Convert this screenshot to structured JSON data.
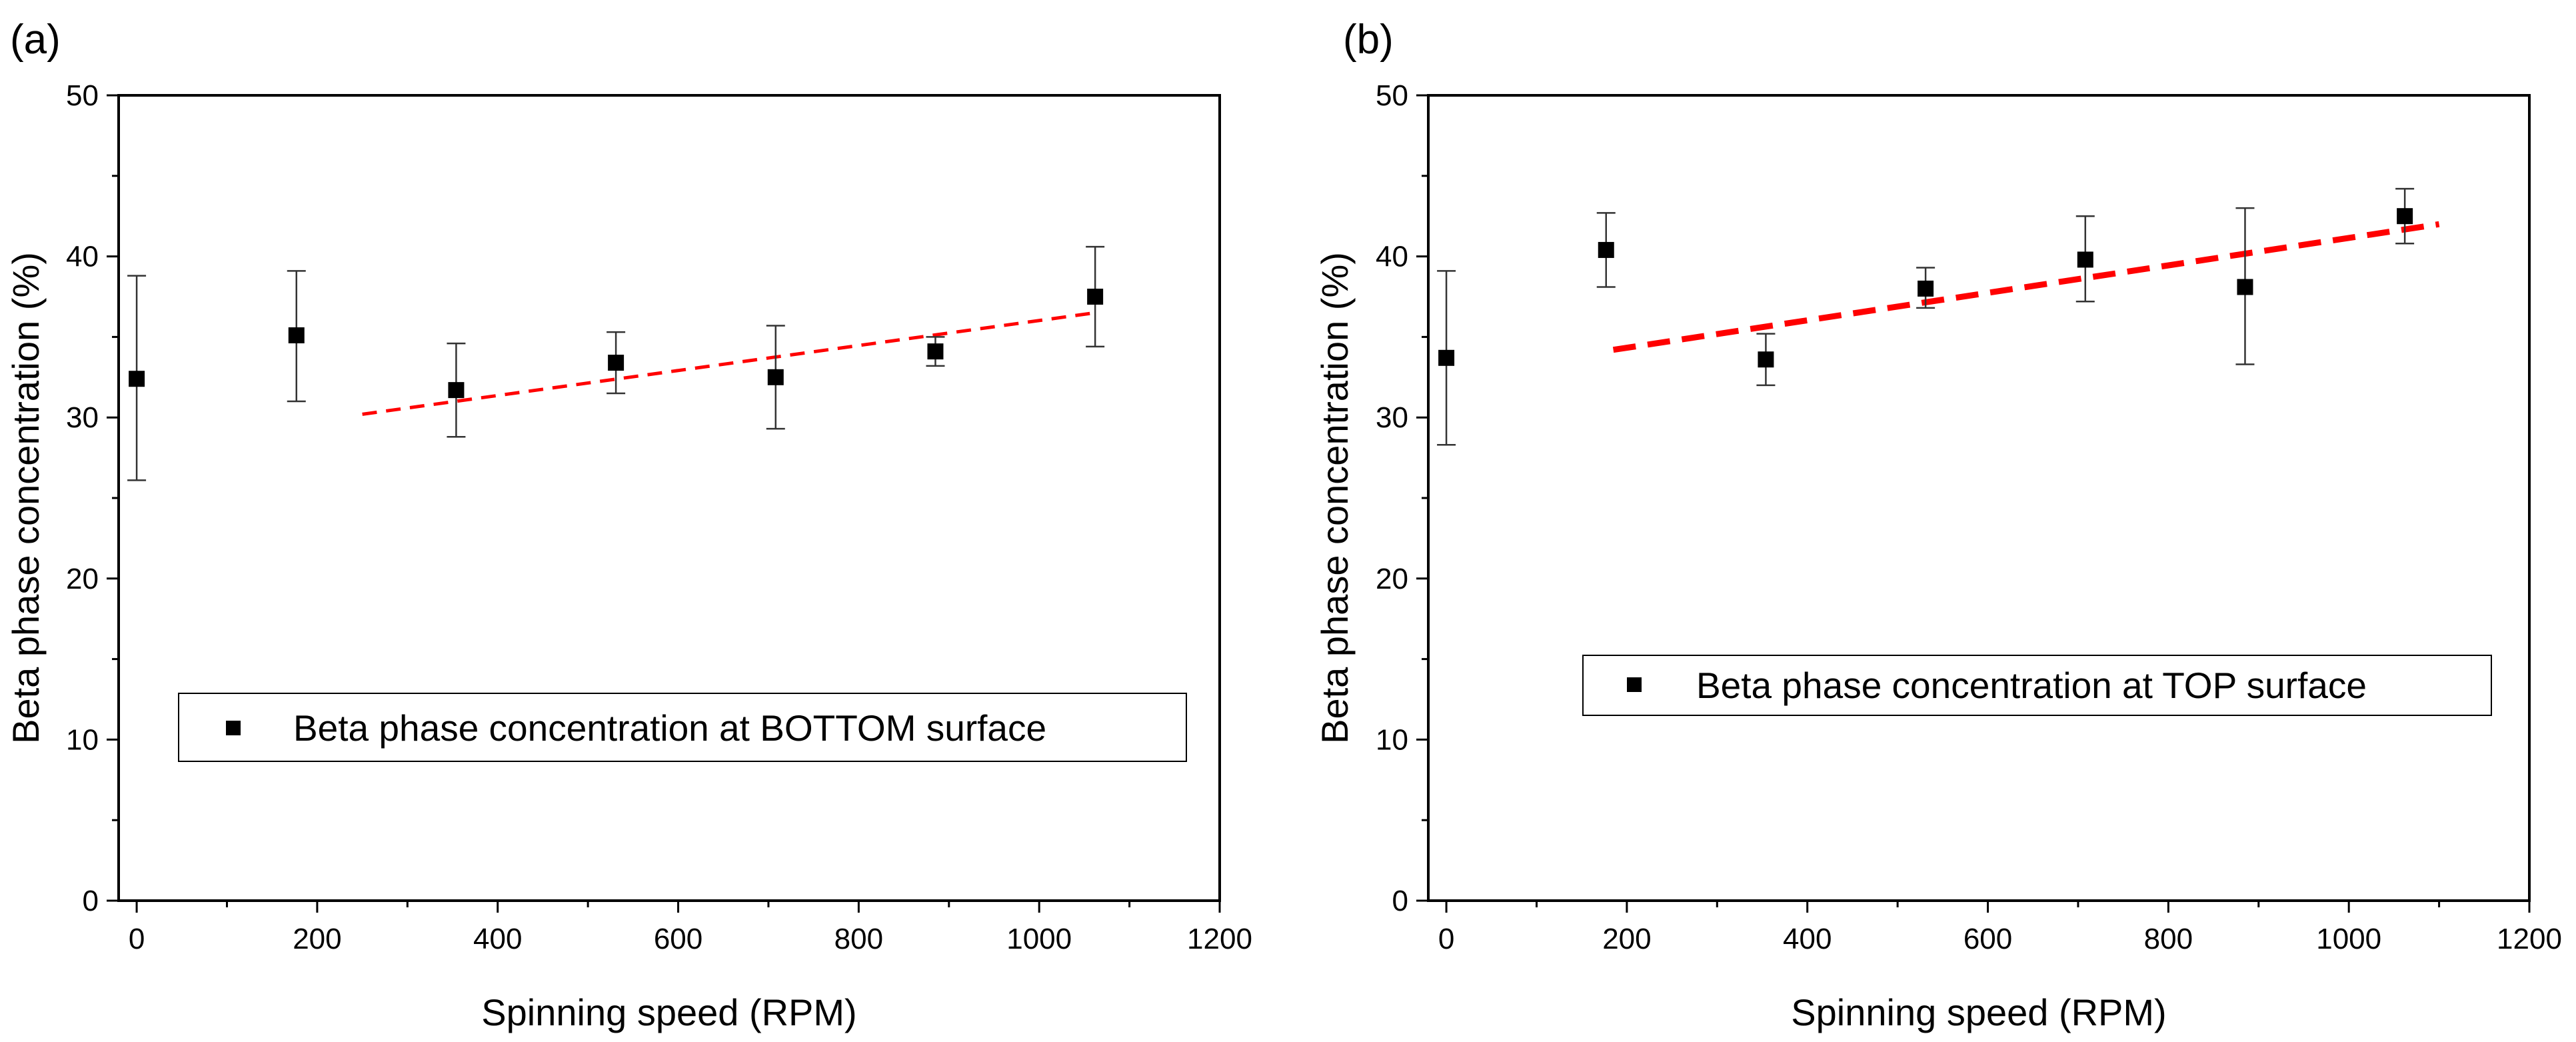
{
  "chart_data": [
    {
      "panel_label": "(a)",
      "type": "scatter",
      "xlabel": "Spinning speed (RPM)",
      "ylabel": "Beta phase concentration (%)",
      "xlim": [
        -20,
        1200
      ],
      "ylim": [
        0,
        50
      ],
      "x_ticks": [
        0,
        200,
        400,
        600,
        800,
        1000,
        1200
      ],
      "y_ticks": [
        0,
        10,
        20,
        30,
        40,
        50
      ],
      "x_tick_labels": [
        "0",
        "200",
        "400",
        "600",
        "800",
        "1000",
        "1200"
      ],
      "y_tick_labels": [
        "0",
        "10",
        "20",
        "30",
        "40",
        "50"
      ],
      "legend": "Beta phase concentration at BOTTOM surface",
      "legend_position": "lower-center",
      "series": [
        {
          "name": "Beta phase concentration at BOTTOM surface",
          "marker": "square",
          "color": "#000000",
          "x": [
            0,
            177,
            354,
            531,
            708,
            885,
            1062
          ],
          "y": [
            32.4,
            35.1,
            31.7,
            33.4,
            32.5,
            34.1,
            37.5
          ],
          "err_low": [
            26.1,
            31.0,
            28.8,
            31.5,
            29.3,
            33.2,
            34.4
          ],
          "err_high": [
            38.8,
            39.1,
            34.6,
            35.3,
            35.7,
            35.0,
            40.6
          ]
        }
      ],
      "fit_line": {
        "x": [
          250,
          1062
        ],
        "y": [
          30.2,
          36.5
        ],
        "color": "#ff0000",
        "style": "dashed"
      }
    },
    {
      "panel_label": "(b)",
      "type": "scatter",
      "xlabel": "Spinning speed (RPM)",
      "ylabel": "Beta phase concentration (%)",
      "xlim": [
        -20,
        1200
      ],
      "ylim": [
        0,
        50
      ],
      "x_ticks": [
        0,
        200,
        400,
        600,
        800,
        1000,
        1200
      ],
      "y_ticks": [
        0,
        10,
        20,
        30,
        40,
        50
      ],
      "x_tick_labels": [
        "0",
        "200",
        "400",
        "600",
        "800",
        "1000",
        "1200"
      ],
      "y_tick_labels": [
        "0",
        "10",
        "20",
        "30",
        "40",
        "50"
      ],
      "legend": "Beta phase concentration at TOP surface",
      "legend_position": "center-right",
      "series": [
        {
          "name": "Beta phase concentration at TOP surface",
          "marker": "square",
          "color": "#000000",
          "x": [
            0,
            177,
            354,
            531,
            708,
            885,
            1062
          ],
          "y": [
            33.7,
            40.4,
            33.6,
            38.0,
            39.8,
            38.1,
            42.5
          ],
          "err_low": [
            28.3,
            38.1,
            32.0,
            36.8,
            37.2,
            33.3,
            40.8
          ],
          "err_high": [
            39.1,
            42.7,
            35.2,
            39.3,
            42.5,
            43.0,
            44.2
          ]
        }
      ],
      "fit_line": {
        "x": [
          185,
          1100
        ],
        "y": [
          34.2,
          42.0
        ],
        "color": "#ff0000",
        "style": "dashed"
      }
    }
  ]
}
